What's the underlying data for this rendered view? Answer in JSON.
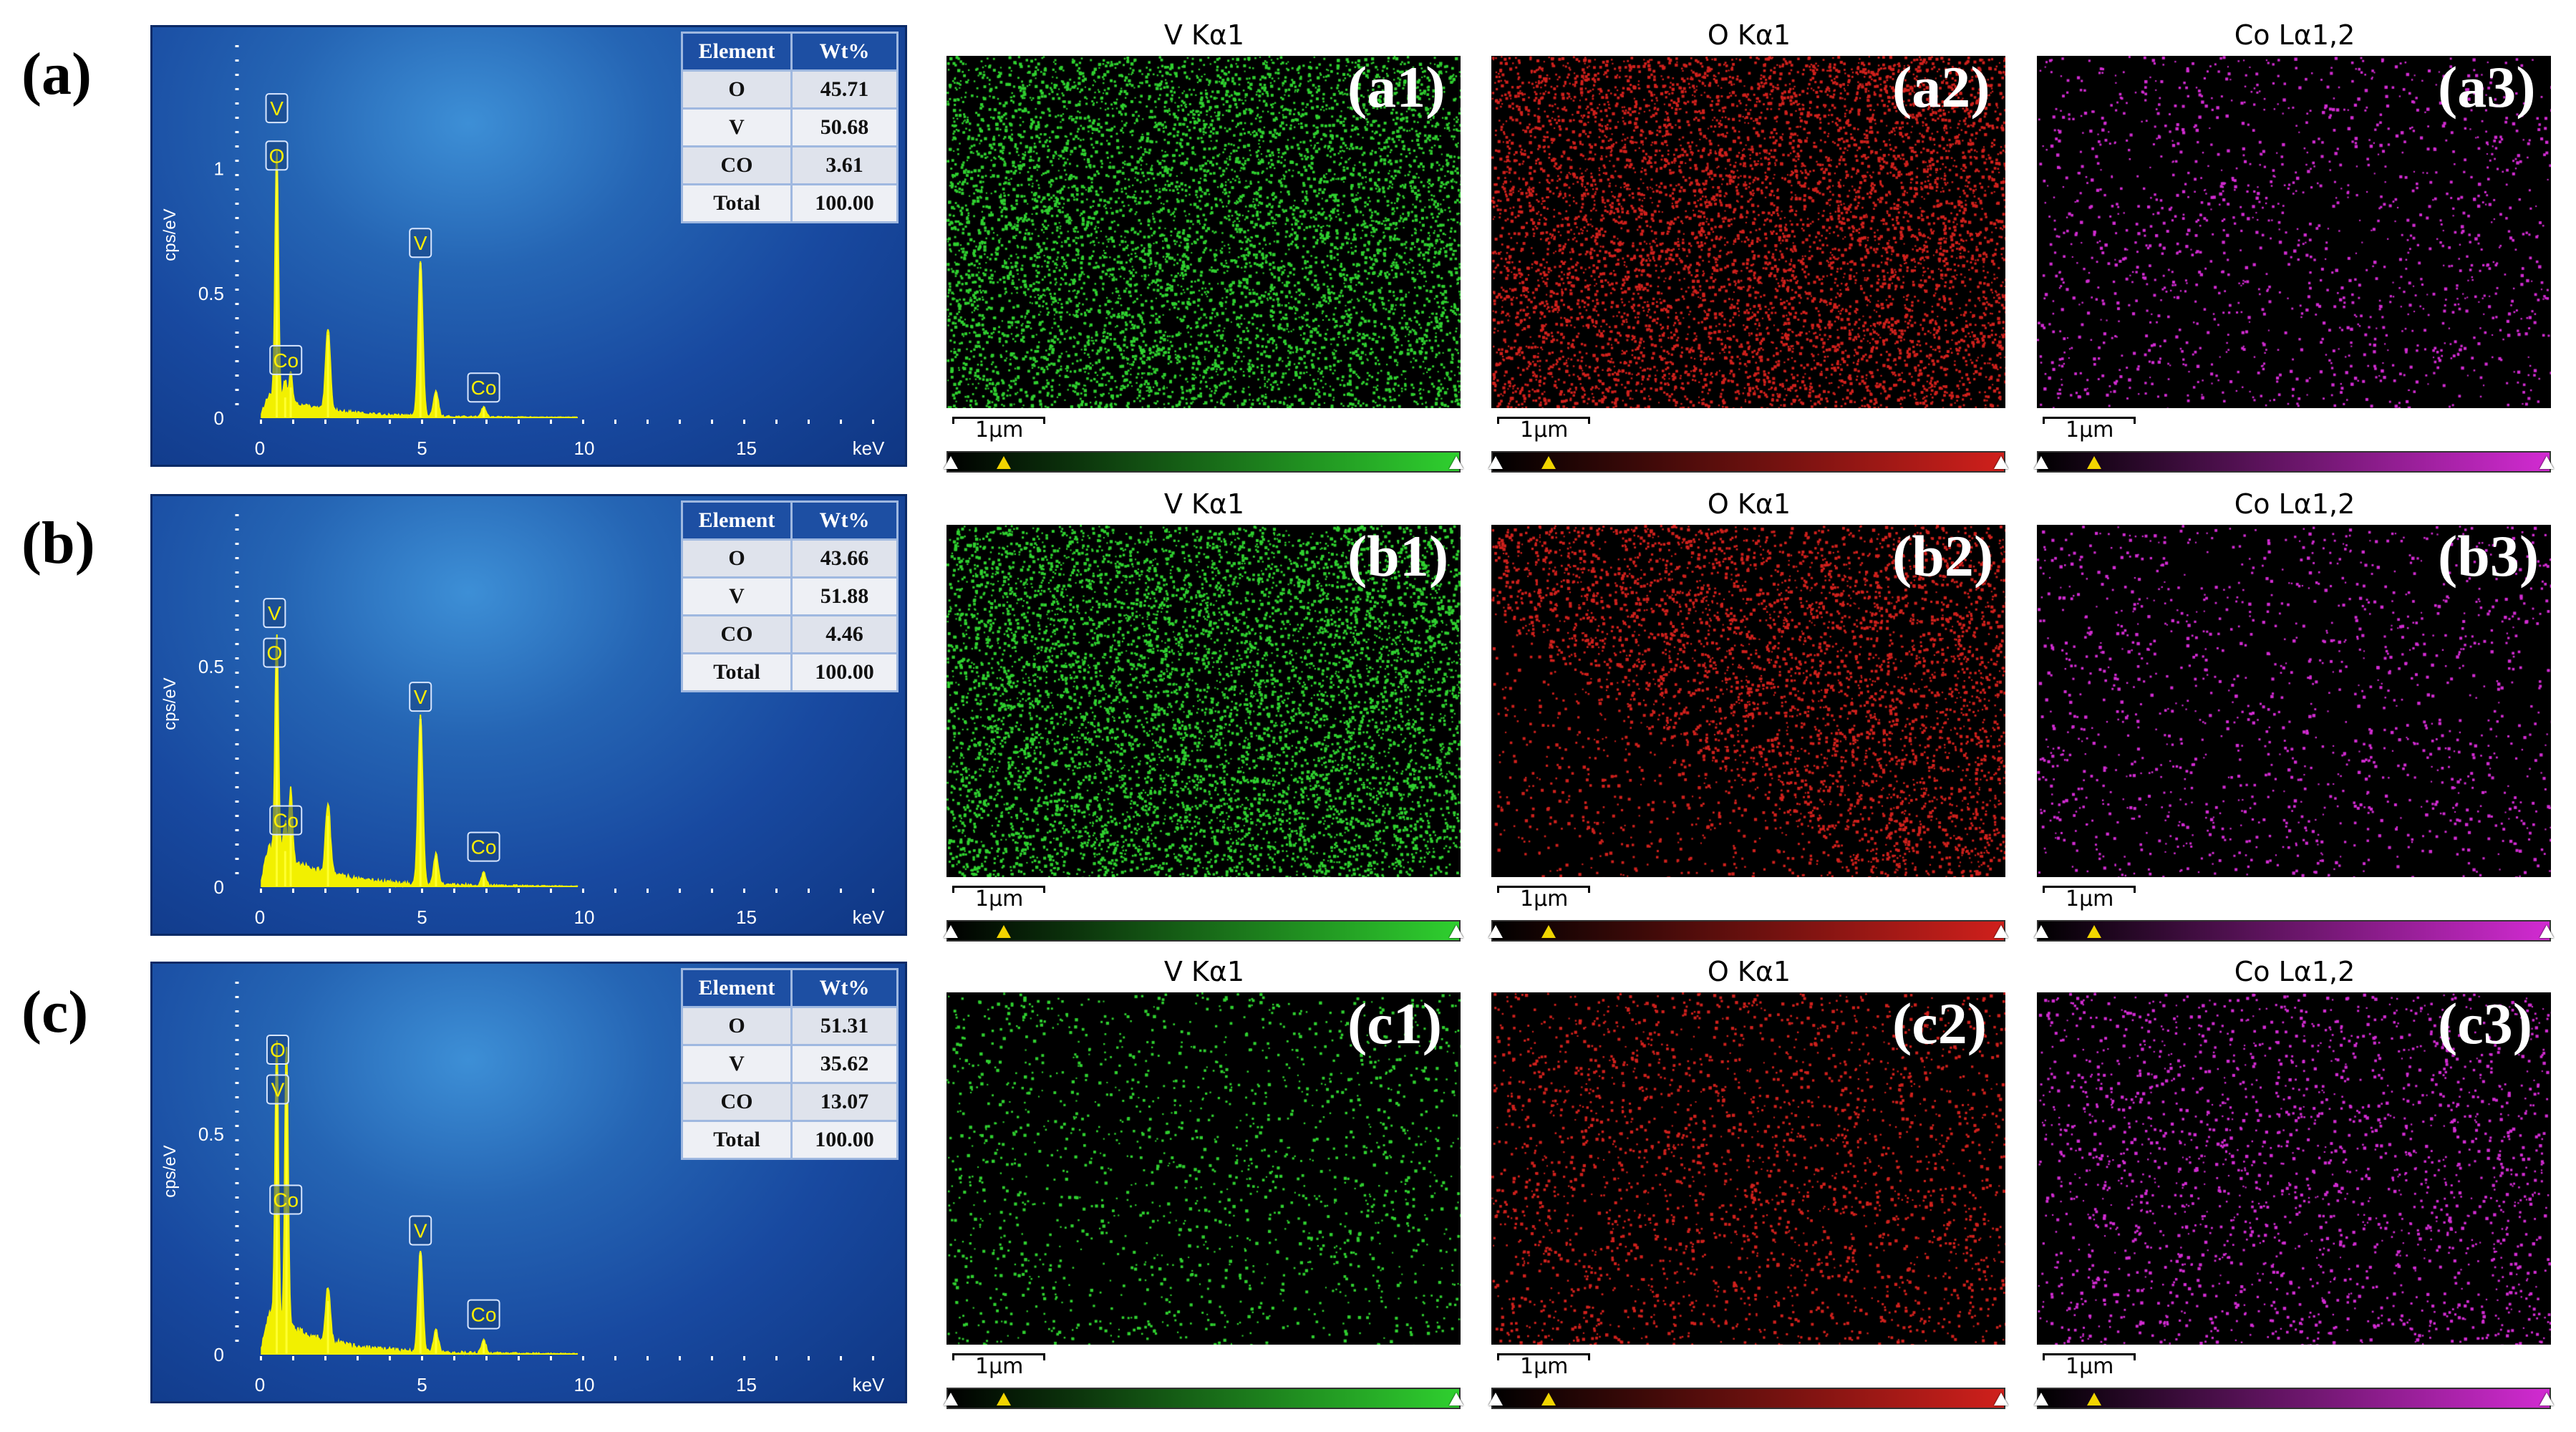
{
  "rows": [
    {
      "label": "(a)",
      "spectrum": {
        "ytick_labels": [
          "0",
          "0.5",
          "1"
        ],
        "yticks": [
          0,
          0.5,
          1
        ],
        "ymax": 1.45,
        "ylabel": "cps/eV",
        "xtick_labels": [
          "0",
          "5",
          "10",
          "15"
        ],
        "xunit": "keV",
        "peaks": [
          {
            "x": 0.52,
            "y": 1.0,
            "name": "O"
          },
          {
            "x": 0.78,
            "y": 0.08,
            "name": "Co"
          },
          {
            "x": 0.95,
            "y": 0.12,
            "name": ""
          },
          {
            "x": 2.1,
            "y": 0.33,
            "name": ""
          },
          {
            "x": 4.95,
            "y": 0.62,
            "name": "V"
          },
          {
            "x": 5.43,
            "y": 0.1,
            "name": ""
          },
          {
            "x": 6.9,
            "y": 0.04,
            "name": "Co"
          }
        ],
        "peak_labels": [
          {
            "text": "V",
            "x": 0.52,
            "y": 1.24
          },
          {
            "text": "O",
            "x": 0.52,
            "y": 1.05
          },
          {
            "text": "V",
            "x": 4.95,
            "y": 0.7
          },
          {
            "text": "Co",
            "x": 0.8,
            "y": 0.23
          },
          {
            "text": "Co",
            "x": 6.9,
            "y": 0.12
          }
        ]
      },
      "table": {
        "headers": [
          "Element",
          "Wt%"
        ],
        "rows": [
          [
            "O",
            "45.71"
          ],
          [
            "V",
            "50.68"
          ],
          [
            "CO",
            "3.61"
          ],
          [
            "Total",
            "100.00"
          ]
        ]
      },
      "maps": [
        {
          "title": "V Kα1",
          "label": "(a1)",
          "color": "#2fd02f",
          "density": 3200
        },
        {
          "title": "O Kα1",
          "label": "(a2)",
          "color": "#d0201c",
          "density": 3200
        },
        {
          "title": "Co Lα1,2",
          "label": "(a3)",
          "color": "#d22bd2",
          "density": 700
        }
      ]
    },
    {
      "label": "(b)",
      "spectrum": {
        "ytick_labels": [
          "0",
          "0.5"
        ],
        "yticks": [
          0,
          0.5
        ],
        "ymax": 0.82,
        "ylabel": "cps/eV",
        "xtick_labels": [
          "0",
          "5",
          "10",
          "15"
        ],
        "xunit": "keV",
        "peaks": [
          {
            "x": 0.52,
            "y": 0.5,
            "name": "O"
          },
          {
            "x": 0.78,
            "y": 0.08,
            "name": "Co"
          },
          {
            "x": 0.95,
            "y": 0.16,
            "name": ""
          },
          {
            "x": 2.1,
            "y": 0.16,
            "name": ""
          },
          {
            "x": 4.95,
            "y": 0.38,
            "name": "V"
          },
          {
            "x": 5.43,
            "y": 0.07,
            "name": ""
          },
          {
            "x": 6.9,
            "y": 0.03,
            "name": "Co"
          }
        ],
        "peak_labels": [
          {
            "text": "V",
            "x": 0.45,
            "y": 0.62
          },
          {
            "text": "O",
            "x": 0.45,
            "y": 0.53
          },
          {
            "text": "V",
            "x": 4.95,
            "y": 0.43
          },
          {
            "text": "Co",
            "x": 0.8,
            "y": 0.15
          },
          {
            "text": "Co",
            "x": 6.9,
            "y": 0.09
          }
        ]
      },
      "table": {
        "headers": [
          "Element",
          "Wt%"
        ],
        "rows": [
          [
            "O",
            "43.66"
          ],
          [
            "V",
            "51.88"
          ],
          [
            "CO",
            "4.46"
          ],
          [
            "Total",
            "100.00"
          ]
        ]
      },
      "maps": [
        {
          "title": "V Kα1",
          "label": "(b1)",
          "color": "#2fd02f",
          "density": 3400
        },
        {
          "title": "O Kα1",
          "label": "(b2)",
          "color": "#d0201c",
          "density": 2600
        },
        {
          "title": "Co Lα1,2",
          "label": "(b3)",
          "color": "#d22bd2",
          "density": 650
        }
      ]
    },
    {
      "label": "(c)",
      "spectrum": {
        "ytick_labels": [
          "0",
          "0.5"
        ],
        "yticks": [
          0,
          0.5
        ],
        "ymax": 0.82,
        "ylabel": "cps/eV",
        "xtick_labels": [
          "0",
          "5",
          "10",
          "15"
        ],
        "xunit": "keV",
        "peaks": [
          {
            "x": 0.52,
            "y": 0.64,
            "name": "O"
          },
          {
            "x": 0.82,
            "y": 0.64,
            "name": "Co"
          },
          {
            "x": 2.1,
            "y": 0.12,
            "name": ""
          },
          {
            "x": 4.95,
            "y": 0.23,
            "name": "V"
          },
          {
            "x": 5.43,
            "y": 0.05,
            "name": ""
          },
          {
            "x": 6.9,
            "y": 0.03,
            "name": "Co"
          }
        ],
        "peak_labels": [
          {
            "text": "O",
            "x": 0.55,
            "y": 0.69
          },
          {
            "text": "V",
            "x": 0.55,
            "y": 0.6
          },
          {
            "text": "Co",
            "x": 0.8,
            "y": 0.35
          },
          {
            "text": "V",
            "x": 4.95,
            "y": 0.28
          },
          {
            "text": "Co",
            "x": 6.9,
            "y": 0.09
          }
        ]
      },
      "table": {
        "headers": [
          "Element",
          "Wt%"
        ],
        "rows": [
          [
            "O",
            "51.31"
          ],
          [
            "V",
            "35.62"
          ],
          [
            "CO",
            "13.07"
          ],
          [
            "Total",
            "100.00"
          ]
        ]
      },
      "maps": [
        {
          "title": "V Kα1",
          "label": "(c1)",
          "color": "#2fd02f",
          "density": 800
        },
        {
          "title": "O Kα1",
          "label": "(c2)",
          "color": "#d0201c",
          "density": 1200
        },
        {
          "title": "Co Lα1,2",
          "label": "(c3)",
          "color": "#d22bd2",
          "density": 1000
        }
      ]
    }
  ],
  "scalebar_label": "1µm",
  "chart_data": [
    {
      "type": "line",
      "title": "",
      "xlabel": "keV",
      "ylabel": "cps/eV",
      "xlim": [
        0,
        19
      ],
      "ylim": [
        0,
        1.45
      ],
      "series": [
        {
          "values": [
            [
              0.52,
              1.0
            ],
            [
              0.78,
              0.08
            ],
            [
              2.1,
              0.33
            ],
            [
              4.95,
              0.62
            ],
            [
              6.9,
              0.04
            ]
          ]
        }
      ]
    },
    {
      "type": "line",
      "title": "",
      "xlabel": "keV",
      "ylabel": "cps/eV",
      "xlim": [
        0,
        19
      ],
      "ylim": [
        0,
        0.82
      ],
      "series": [
        {
          "values": [
            [
              0.52,
              0.5
            ],
            [
              0.78,
              0.08
            ],
            [
              2.1,
              0.16
            ],
            [
              4.95,
              0.38
            ],
            [
              6.9,
              0.03
            ]
          ]
        }
      ]
    },
    {
      "type": "line",
      "title": "",
      "xlabel": "keV",
      "ylabel": "cps/eV",
      "xlim": [
        0,
        19
      ],
      "ylim": [
        0,
        0.82
      ],
      "series": [
        {
          "values": [
            [
              0.52,
              0.64
            ],
            [
              0.82,
              0.64
            ],
            [
              2.1,
              0.12
            ],
            [
              4.95,
              0.23
            ],
            [
              6.9,
              0.03
            ]
          ]
        }
      ]
    }
  ]
}
